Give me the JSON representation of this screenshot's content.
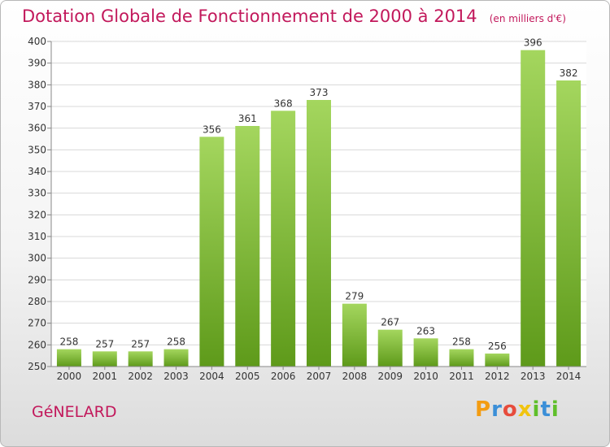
{
  "title": "Dotation Globale de Fonctionnement de 2000 à 2014",
  "unit_note": "(en milliers d'€)",
  "place": "GéNELARD",
  "logo": {
    "letters": [
      "P",
      "r",
      "o",
      "x",
      "i",
      "t",
      "i"
    ],
    "colors": [
      "#f39c12",
      "#3b8fd8",
      "#e74c3c",
      "#f1c40f",
      "#5fbf2a",
      "#3b8fd8",
      "#5fbf2a"
    ]
  },
  "colors": {
    "bar_light": "#a4d65e",
    "bar_dark": "#5e9a1a",
    "grid": "#d8d8d8",
    "title": "#c2185b"
  },
  "chart_data": {
    "type": "bar",
    "title": "Dotation Globale de Fonctionnement de 2000 à 2014",
    "xlabel": "",
    "ylabel": "",
    "categories": [
      "2000",
      "2001",
      "2002",
      "2003",
      "2004",
      "2005",
      "2006",
      "2007",
      "2008",
      "2009",
      "2010",
      "2011",
      "2012",
      "2013",
      "2014"
    ],
    "values": [
      258,
      257,
      257,
      258,
      356,
      361,
      368,
      373,
      279,
      267,
      263,
      258,
      256,
      396,
      382
    ],
    "ylim": [
      250,
      400
    ],
    "yticks": [
      250,
      260,
      270,
      280,
      290,
      300,
      310,
      320,
      330,
      340,
      350,
      360,
      370,
      380,
      390,
      400
    ],
    "grid": true,
    "data_labels": true
  }
}
